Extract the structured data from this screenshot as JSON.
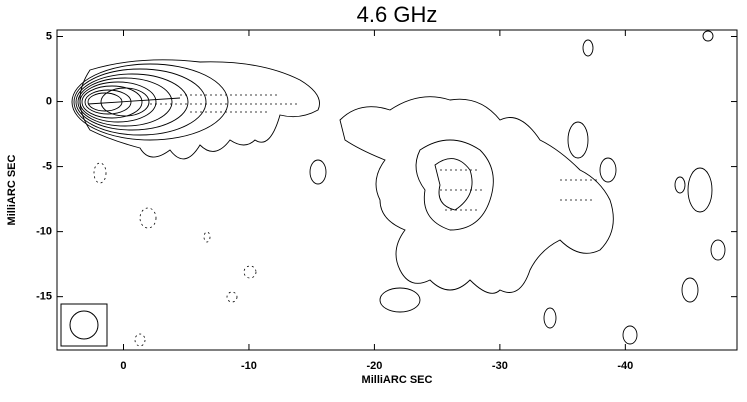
{
  "chart_data": {
    "type": "contour",
    "title": "4.6 GHz",
    "x_label": "MilliARC SEC",
    "y_label": "MilliARC SEC",
    "xlim": [
      5.3,
      -48.9
    ],
    "ylim": [
      -19.1,
      5.5
    ],
    "xticks": [
      0,
      -10,
      -20,
      -30,
      -40
    ],
    "yticks": [
      5,
      0,
      -5,
      -10,
      -15
    ]
  }
}
